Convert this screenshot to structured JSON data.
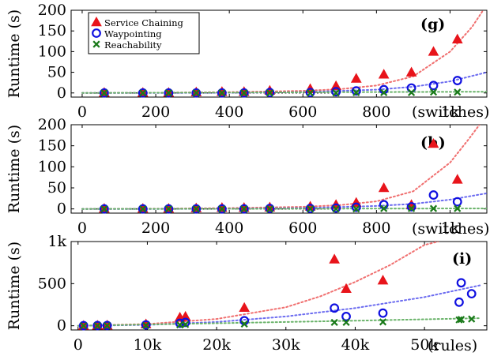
{
  "colors": {
    "service_chaining": "#e8141b",
    "waypointing": "#1010e0",
    "reachability": "#1a7a1a",
    "fit_service_chaining": "#f07070",
    "fit_waypointing": "#6d6df0",
    "fit_reachability": "#6ab36a",
    "baseline": "#333333"
  },
  "markers": {
    "service_chaining": "triangle-icon",
    "waypointing": "circle-icon",
    "reachability": "cross-icon"
  },
  "chart_data": [
    {
      "type": "scatter",
      "panel_label": "(g)",
      "ylabel": "Runtime (s)",
      "xlabel_unit": "(switches)",
      "xlim": [
        -30,
        1100
      ],
      "ylim": [
        -10,
        200
      ],
      "x_ticks": [
        0,
        200,
        400,
        600,
        800,
        1000
      ],
      "x_tick_labels": [
        "0",
        "200",
        "400",
        "600",
        "800",
        "1k"
      ],
      "y_ticks": [
        0,
        50,
        100,
        150,
        200
      ],
      "y_tick_labels": [
        "0",
        "50",
        "100",
        "150",
        "200"
      ],
      "legend": {
        "position": "top-left",
        "entries": [
          "Service Chaining",
          "Waypointing",
          "Reachability"
        ]
      },
      "series": [
        {
          "name": "Service Chaining",
          "x": [
            60,
            165,
            235,
            310,
            380,
            440,
            510,
            620,
            690,
            745,
            820,
            895,
            955,
            1020
          ],
          "y": [
            1,
            1,
            1,
            2,
            3,
            3,
            6,
            10,
            17,
            35,
            45,
            50,
            100,
            130
          ]
        },
        {
          "name": "Waypointing",
          "x": [
            60,
            165,
            235,
            310,
            380,
            440,
            510,
            620,
            690,
            745,
            820,
            895,
            955,
            1020
          ],
          "y": [
            0,
            0,
            0,
            0,
            0,
            0,
            1,
            1,
            3,
            5,
            8,
            12,
            18,
            30
          ]
        },
        {
          "name": "Reachability",
          "x": [
            60,
            165,
            235,
            310,
            380,
            440,
            510,
            620,
            690,
            745,
            820,
            895,
            955,
            1020
          ],
          "y": [
            0,
            0,
            0,
            0,
            0,
            0,
            0,
            0,
            0,
            1,
            1,
            1,
            2,
            2
          ]
        }
      ],
      "fits": [
        {
          "series": "Service Chaining",
          "x": [
            0,
            200,
            400,
            600,
            700,
            800,
            900,
            1000,
            1060,
            1090
          ],
          "y": [
            0,
            0.5,
            2,
            5,
            9,
            18,
            40,
            100,
            160,
            200
          ]
        },
        {
          "series": "Waypointing",
          "x": [
            0,
            200,
            400,
            600,
            800,
            900,
            1000,
            1100
          ],
          "y": [
            0,
            0,
            0.5,
            2,
            8,
            15,
            28,
            50
          ]
        },
        {
          "series": "Reachability",
          "x": [
            0,
            1100
          ],
          "y": [
            0,
            3
          ]
        }
      ],
      "baseline_x": [
        0,
        700
      ]
    },
    {
      "type": "scatter",
      "panel_label": "(h)",
      "ylabel": "Runtime (s)",
      "xlabel_unit": "(switches)",
      "xlim": [
        -30,
        1100
      ],
      "ylim": [
        -10,
        200
      ],
      "x_ticks": [
        0,
        200,
        400,
        600,
        800,
        1000
      ],
      "x_tick_labels": [
        "0",
        "200",
        "400",
        "600",
        "800",
        "1k"
      ],
      "y_ticks": [
        0,
        50,
        100,
        150,
        200
      ],
      "y_tick_labels": [
        "0",
        "50",
        "100",
        "150",
        "200"
      ],
      "series": [
        {
          "name": "Service Chaining",
          "x": [
            60,
            165,
            235,
            310,
            380,
            440,
            510,
            620,
            690,
            745,
            820,
            895,
            955,
            1020
          ],
          "y": [
            1,
            1,
            1,
            2,
            3,
            3,
            4,
            6,
            10,
            15,
            50,
            10,
            155,
            70
          ]
        },
        {
          "name": "Waypointing",
          "x": [
            60,
            165,
            235,
            310,
            380,
            440,
            510,
            620,
            690,
            745,
            820,
            895,
            955,
            1020
          ],
          "y": [
            0,
            0,
            0,
            0,
            0,
            0,
            1,
            1,
            2,
            4,
            10,
            5,
            33,
            17
          ]
        },
        {
          "name": "Reachability",
          "x": [
            60,
            165,
            235,
            310,
            380,
            440,
            510,
            620,
            690,
            745,
            820,
            895,
            955,
            1020
          ],
          "y": [
            0,
            0,
            0,
            0,
            0,
            0,
            0,
            0,
            0,
            0,
            1,
            1,
            1,
            1
          ]
        }
      ],
      "fits": [
        {
          "series": "Service Chaining",
          "x": [
            0,
            200,
            400,
            600,
            700,
            800,
            900,
            1000,
            1050,
            1080
          ],
          "y": [
            0,
            0.5,
            2,
            5,
            9,
            18,
            42,
            110,
            165,
            200
          ]
        },
        {
          "series": "Waypointing",
          "x": [
            0,
            200,
            400,
            600,
            800,
            900,
            1000,
            1100
          ],
          "y": [
            0,
            0,
            0.5,
            2,
            7,
            12,
            22,
            37
          ]
        },
        {
          "series": "Reachability",
          "x": [
            0,
            1100
          ],
          "y": [
            0,
            1
          ]
        }
      ],
      "baseline_x": [
        0,
        700
      ]
    },
    {
      "type": "scatter",
      "panel_label": "(i)",
      "ylabel": "Runtime (s)",
      "xlabel_unit": "(rules)",
      "xlim": [
        -1000,
        59000
      ],
      "ylim": [
        -50,
        1000
      ],
      "x_ticks": [
        0,
        10000,
        20000,
        30000,
        40000,
        50000
      ],
      "x_tick_labels": [
        "0",
        "10k",
        "20k",
        "30k",
        "40k",
        "50k"
      ],
      "y_ticks": [
        0,
        500,
        1000
      ],
      "y_tick_labels": [
        "0",
        "500",
        "1k"
      ],
      "series": [
        {
          "name": "Service Chaining",
          "x": [
            800,
            2800,
            4200,
            9800,
            14700,
            15500,
            24000,
            37000,
            38700,
            44000
          ],
          "y": [
            2,
            4,
            6,
            20,
            100,
            110,
            215,
            790,
            440,
            540
          ]
        },
        {
          "name": "Waypointing",
          "x": [
            800,
            2800,
            4200,
            9800,
            14700,
            15500,
            24000,
            37000,
            38700,
            44000,
            55000,
            55300,
            56800
          ],
          "y": [
            1,
            2,
            3,
            10,
            30,
            40,
            60,
            210,
            110,
            150,
            280,
            510,
            380
          ]
        },
        {
          "name": "Reachability",
          "x": [
            800,
            2800,
            4200,
            9800,
            14700,
            15500,
            24000,
            37000,
            38700,
            44000,
            55000,
            55300,
            56800
          ],
          "y": [
            0,
            0,
            1,
            3,
            10,
            15,
            20,
            40,
            40,
            45,
            70,
            75,
            80
          ]
        }
      ],
      "fits": [
        {
          "series": "Service Chaining",
          "x": [
            0,
            10000,
            20000,
            30000,
            35000,
            40000,
            45000,
            50000,
            52000
          ],
          "y": [
            0,
            20,
            80,
            220,
            350,
            520,
            720,
            960,
            1000
          ]
        },
        {
          "series": "Waypointing",
          "x": [
            0,
            10000,
            20000,
            30000,
            40000,
            50000,
            58000
          ],
          "y": [
            0,
            10,
            45,
            110,
            210,
            340,
            480
          ]
        },
        {
          "series": "Reachability",
          "x": [
            0,
            20000,
            40000,
            58000
          ],
          "y": [
            0,
            30,
            60,
            90
          ]
        }
      ],
      "baseline_x": []
    }
  ]
}
